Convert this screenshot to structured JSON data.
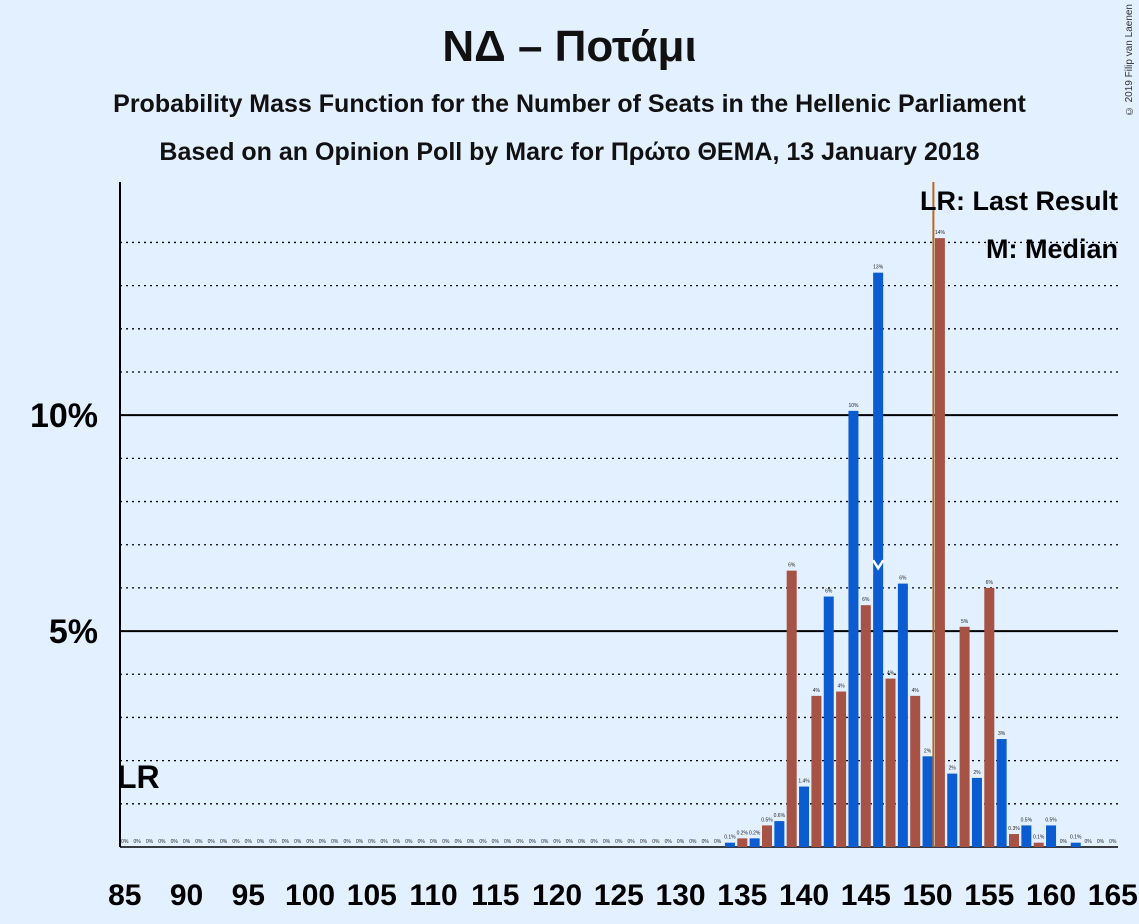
{
  "title": "ΝΔ – Ποτάμι",
  "subtitle": "Probability Mass Function for the Number of Seats in the Hellenic Parliament",
  "subtitle2": "Based on an Opinion Poll by Marc for Πρώτο ΘΕΜΑ, 13 January 2018",
  "copyright": "© 2019 Filip van Laenen",
  "chart_data": {
    "type": "bar",
    "x_min": 85,
    "x_max": 165,
    "ylim": [
      0,
      15.4
    ],
    "x_ticks": [
      85,
      90,
      95,
      100,
      105,
      110,
      115,
      120,
      125,
      130,
      135,
      140,
      145,
      150,
      155,
      160,
      165
    ],
    "y_ticks": [
      {
        "value": 5,
        "label": "5%"
      },
      {
        "value": 10,
        "label": "10%"
      }
    ],
    "last_result": 151,
    "median": 146,
    "legend": {
      "lr": "LR: Last Result",
      "m": "M: Median",
      "lr_axis_label": "LR"
    },
    "colors": {
      "blue": "#0b5cd0",
      "red": "#a65345",
      "lr_line": "#b86a1c",
      "background": "#e3f0ff"
    },
    "bars": [
      {
        "x": 85,
        "value": 0,
        "label": "0%"
      },
      {
        "x": 86,
        "value": 0,
        "label": "0%"
      },
      {
        "x": 87,
        "value": 0,
        "label": "0%"
      },
      {
        "x": 88,
        "value": 0,
        "label": "0%"
      },
      {
        "x": 89,
        "value": 0,
        "label": "0%"
      },
      {
        "x": 90,
        "value": 0,
        "label": "0%"
      },
      {
        "x": 91,
        "value": 0,
        "label": "0%"
      },
      {
        "x": 92,
        "value": 0,
        "label": "0%"
      },
      {
        "x": 93,
        "value": 0,
        "label": "0%"
      },
      {
        "x": 94,
        "value": 0,
        "label": "0%"
      },
      {
        "x": 95,
        "value": 0,
        "label": "0%"
      },
      {
        "x": 96,
        "value": 0,
        "label": "0%"
      },
      {
        "x": 97,
        "value": 0,
        "label": "0%"
      },
      {
        "x": 98,
        "value": 0,
        "label": "0%"
      },
      {
        "x": 99,
        "value": 0,
        "label": "0%"
      },
      {
        "x": 100,
        "value": 0,
        "label": "0%"
      },
      {
        "x": 101,
        "value": 0,
        "label": "0%"
      },
      {
        "x": 102,
        "value": 0,
        "label": "0%"
      },
      {
        "x": 103,
        "value": 0,
        "label": "0%"
      },
      {
        "x": 104,
        "value": 0,
        "label": "0%"
      },
      {
        "x": 105,
        "value": 0,
        "label": "0%"
      },
      {
        "x": 106,
        "value": 0,
        "label": "0%"
      },
      {
        "x": 107,
        "value": 0,
        "label": "0%"
      },
      {
        "x": 108,
        "value": 0,
        "label": "0%"
      },
      {
        "x": 109,
        "value": 0,
        "label": "0%"
      },
      {
        "x": 110,
        "value": 0,
        "label": "0%"
      },
      {
        "x": 111,
        "value": 0,
        "label": "0%"
      },
      {
        "x": 112,
        "value": 0,
        "label": "0%"
      },
      {
        "x": 113,
        "value": 0,
        "label": "0%"
      },
      {
        "x": 114,
        "value": 0,
        "label": "0%"
      },
      {
        "x": 115,
        "value": 0,
        "label": "0%"
      },
      {
        "x": 116,
        "value": 0,
        "label": "0%"
      },
      {
        "x": 117,
        "value": 0,
        "label": "0%"
      },
      {
        "x": 118,
        "value": 0,
        "label": "0%"
      },
      {
        "x": 119,
        "value": 0,
        "label": "0%"
      },
      {
        "x": 120,
        "value": 0,
        "label": "0%"
      },
      {
        "x": 121,
        "value": 0,
        "label": "0%"
      },
      {
        "x": 122,
        "value": 0,
        "label": "0%"
      },
      {
        "x": 123,
        "value": 0,
        "label": "0%"
      },
      {
        "x": 124,
        "value": 0,
        "label": "0%"
      },
      {
        "x": 125,
        "value": 0,
        "label": "0%"
      },
      {
        "x": 126,
        "value": 0,
        "label": "0%"
      },
      {
        "x": 127,
        "value": 0,
        "label": "0%"
      },
      {
        "x": 128,
        "value": 0,
        "label": "0%"
      },
      {
        "x": 129,
        "value": 0,
        "label": "0%"
      },
      {
        "x": 130,
        "value": 0,
        "label": "0%"
      },
      {
        "x": 131,
        "value": 0,
        "label": "0%"
      },
      {
        "x": 132,
        "value": 0,
        "label": "0%"
      },
      {
        "x": 133,
        "value": 0,
        "label": "0%"
      },
      {
        "x": 134,
        "value": 0.1,
        "label": "0.1%"
      },
      {
        "x": 135,
        "value": 0.2,
        "label": "0.2%"
      },
      {
        "x": 136,
        "value": 0.2,
        "label": "0.2%"
      },
      {
        "x": 137,
        "value": 0.5,
        "label": "0.5%"
      },
      {
        "x": 138,
        "value": 0.6,
        "label": "0.6%"
      },
      {
        "x": 139,
        "value": 6.4,
        "label": "6%"
      },
      {
        "x": 140,
        "value": 1.4,
        "label": "1.4%"
      },
      {
        "x": 141,
        "value": 3.5,
        "label": "4%"
      },
      {
        "x": 142,
        "value": 5.8,
        "label": "6%"
      },
      {
        "x": 143,
        "value": 3.6,
        "label": "4%"
      },
      {
        "x": 144,
        "value": 10.1,
        "label": "10%"
      },
      {
        "x": 145,
        "value": 5.6,
        "label": "6%"
      },
      {
        "x": 146,
        "value": 13.3,
        "label": "13%"
      },
      {
        "x": 147,
        "value": 3.9,
        "label": "4%"
      },
      {
        "x": 148,
        "value": 6.1,
        "label": "6%"
      },
      {
        "x": 149,
        "value": 3.5,
        "label": "4%"
      },
      {
        "x": 150,
        "value": 2.1,
        "label": "2%"
      },
      {
        "x": 151,
        "value": 14.1,
        "label": "14%"
      },
      {
        "x": 152,
        "value": 1.7,
        "label": "2%"
      },
      {
        "x": 153,
        "value": 5.1,
        "label": "5%"
      },
      {
        "x": 154,
        "value": 1.6,
        "label": "2%"
      },
      {
        "x": 155,
        "value": 6.0,
        "label": "6%"
      },
      {
        "x": 156,
        "value": 2.5,
        "label": "3%"
      },
      {
        "x": 157,
        "value": 0.3,
        "label": "0.3%"
      },
      {
        "x": 158,
        "value": 0.5,
        "label": "0.5%"
      },
      {
        "x": 159,
        "value": 0.1,
        "label": "0.1%"
      },
      {
        "x": 160,
        "value": 0.5,
        "label": "0.5%"
      },
      {
        "x": 161,
        "value": 0,
        "label": "0%"
      },
      {
        "x": 162,
        "value": 0.1,
        "label": "0.1%"
      },
      {
        "x": 163,
        "value": 0,
        "label": "0%"
      },
      {
        "x": 164,
        "value": 0,
        "label": "0%"
      },
      {
        "x": 165,
        "value": 0,
        "label": "0%"
      }
    ]
  }
}
